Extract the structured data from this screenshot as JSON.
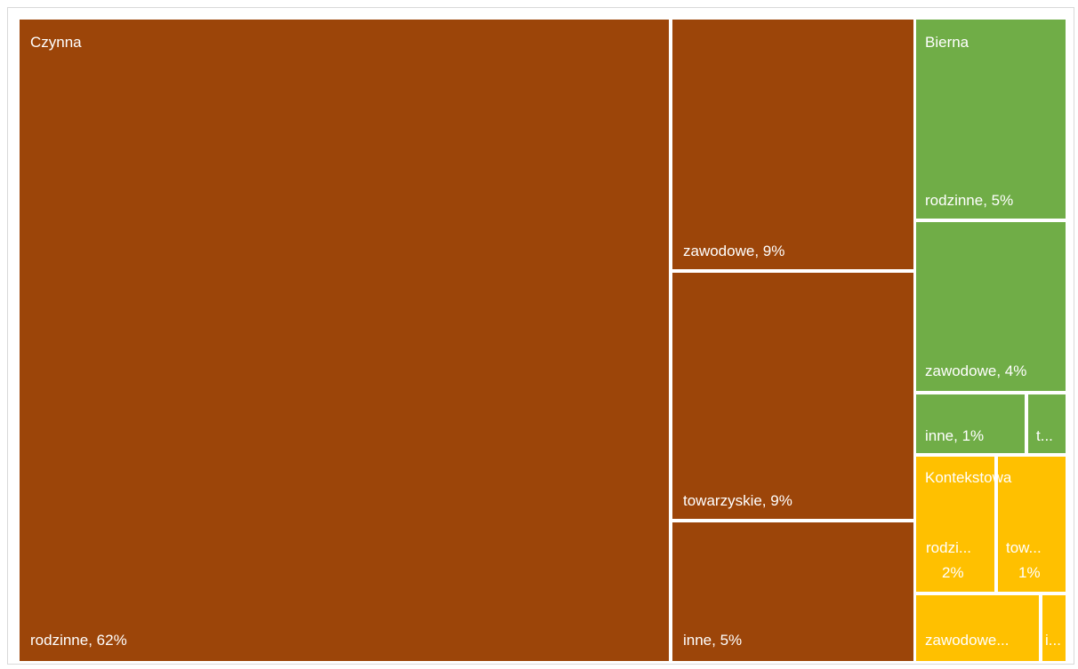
{
  "chart_data": {
    "type": "treemap",
    "groups": [
      {
        "name": "Czynna",
        "color": "#9C4509",
        "items": [
          {
            "name": "rodzinne",
            "value": 62,
            "label": "rodzinne, 62%"
          },
          {
            "name": "zawodowe",
            "value": 9,
            "label": "zawodowe, 9%"
          },
          {
            "name": "towarzyskie",
            "value": 9,
            "label": "towarzyskie, 9%"
          },
          {
            "name": "inne",
            "value": 5,
            "label": "inne, 5%"
          }
        ]
      },
      {
        "name": "Bierna",
        "color": "#70AD47",
        "items": [
          {
            "name": "rodzinne",
            "value": 5,
            "label": "rodzinne, 5%"
          },
          {
            "name": "zawodowe",
            "value": 4,
            "label": "zawodowe, 4%"
          },
          {
            "name": "inne",
            "value": 1,
            "label": "inne, 1%"
          },
          {
            "name": "towarzyskie",
            "value": 0.5,
            "label": "t..."
          }
        ]
      },
      {
        "name": "Kontekstowa",
        "color": "#FFC000",
        "items": [
          {
            "name": "rodzinne",
            "value": 2,
            "label": "rodzi...",
            "label2": "2%"
          },
          {
            "name": "towarzyskie",
            "value": 1,
            "label": "tow...",
            "label2": "1%"
          },
          {
            "name": "zawodowe",
            "value": 1,
            "label": "zawodowe..."
          },
          {
            "name": "inne",
            "value": 0.2,
            "label": "i..."
          }
        ]
      }
    ]
  }
}
